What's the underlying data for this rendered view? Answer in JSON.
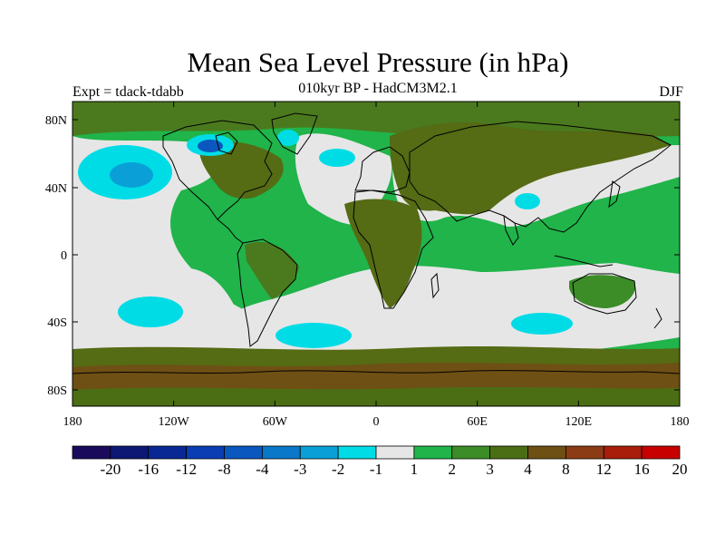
{
  "header": {
    "title": "Mean Sea Level Pressure (in hPa)",
    "subtitle": "010kyr BP - HadCM3M2.1",
    "experiment": "Expt = tdack-tdabb",
    "season": "DJF"
  },
  "axes": {
    "lat_ticks": [
      "80N",
      "40N",
      "0",
      "40S",
      "80S"
    ],
    "lon_ticks": [
      "180",
      "120W",
      "60W",
      "0",
      "60E",
      "120E",
      "180"
    ]
  },
  "colorbar": {
    "colors": [
      "#1a0a5c",
      "#0c1873",
      "#0a2894",
      "#0a3cb4",
      "#0a58bf",
      "#0a78c8",
      "#0aa0d7",
      "#00dce6",
      "#e6e6e6",
      "#20b44a",
      "#3c8c28",
      "#4b6e14",
      "#6e5014",
      "#8c3c14",
      "#a81e0a",
      "#c80000"
    ],
    "labels": [
      "-20",
      "-16",
      "-12",
      "-8",
      "-4",
      "-3",
      "-2",
      "-1",
      "1",
      "2",
      "3",
      "4",
      "8",
      "12",
      "16",
      "20"
    ]
  },
  "palette": {
    "grey": "#e6e6e6",
    "green": "#20b44a",
    "dark_green": "#4b7a1e",
    "olive": "#556b14",
    "brown": "#6e5014",
    "cyan": "#00dce6",
    "blue": "#0a78c8",
    "navy": "#0a3cb4",
    "coast": "#000000"
  }
}
